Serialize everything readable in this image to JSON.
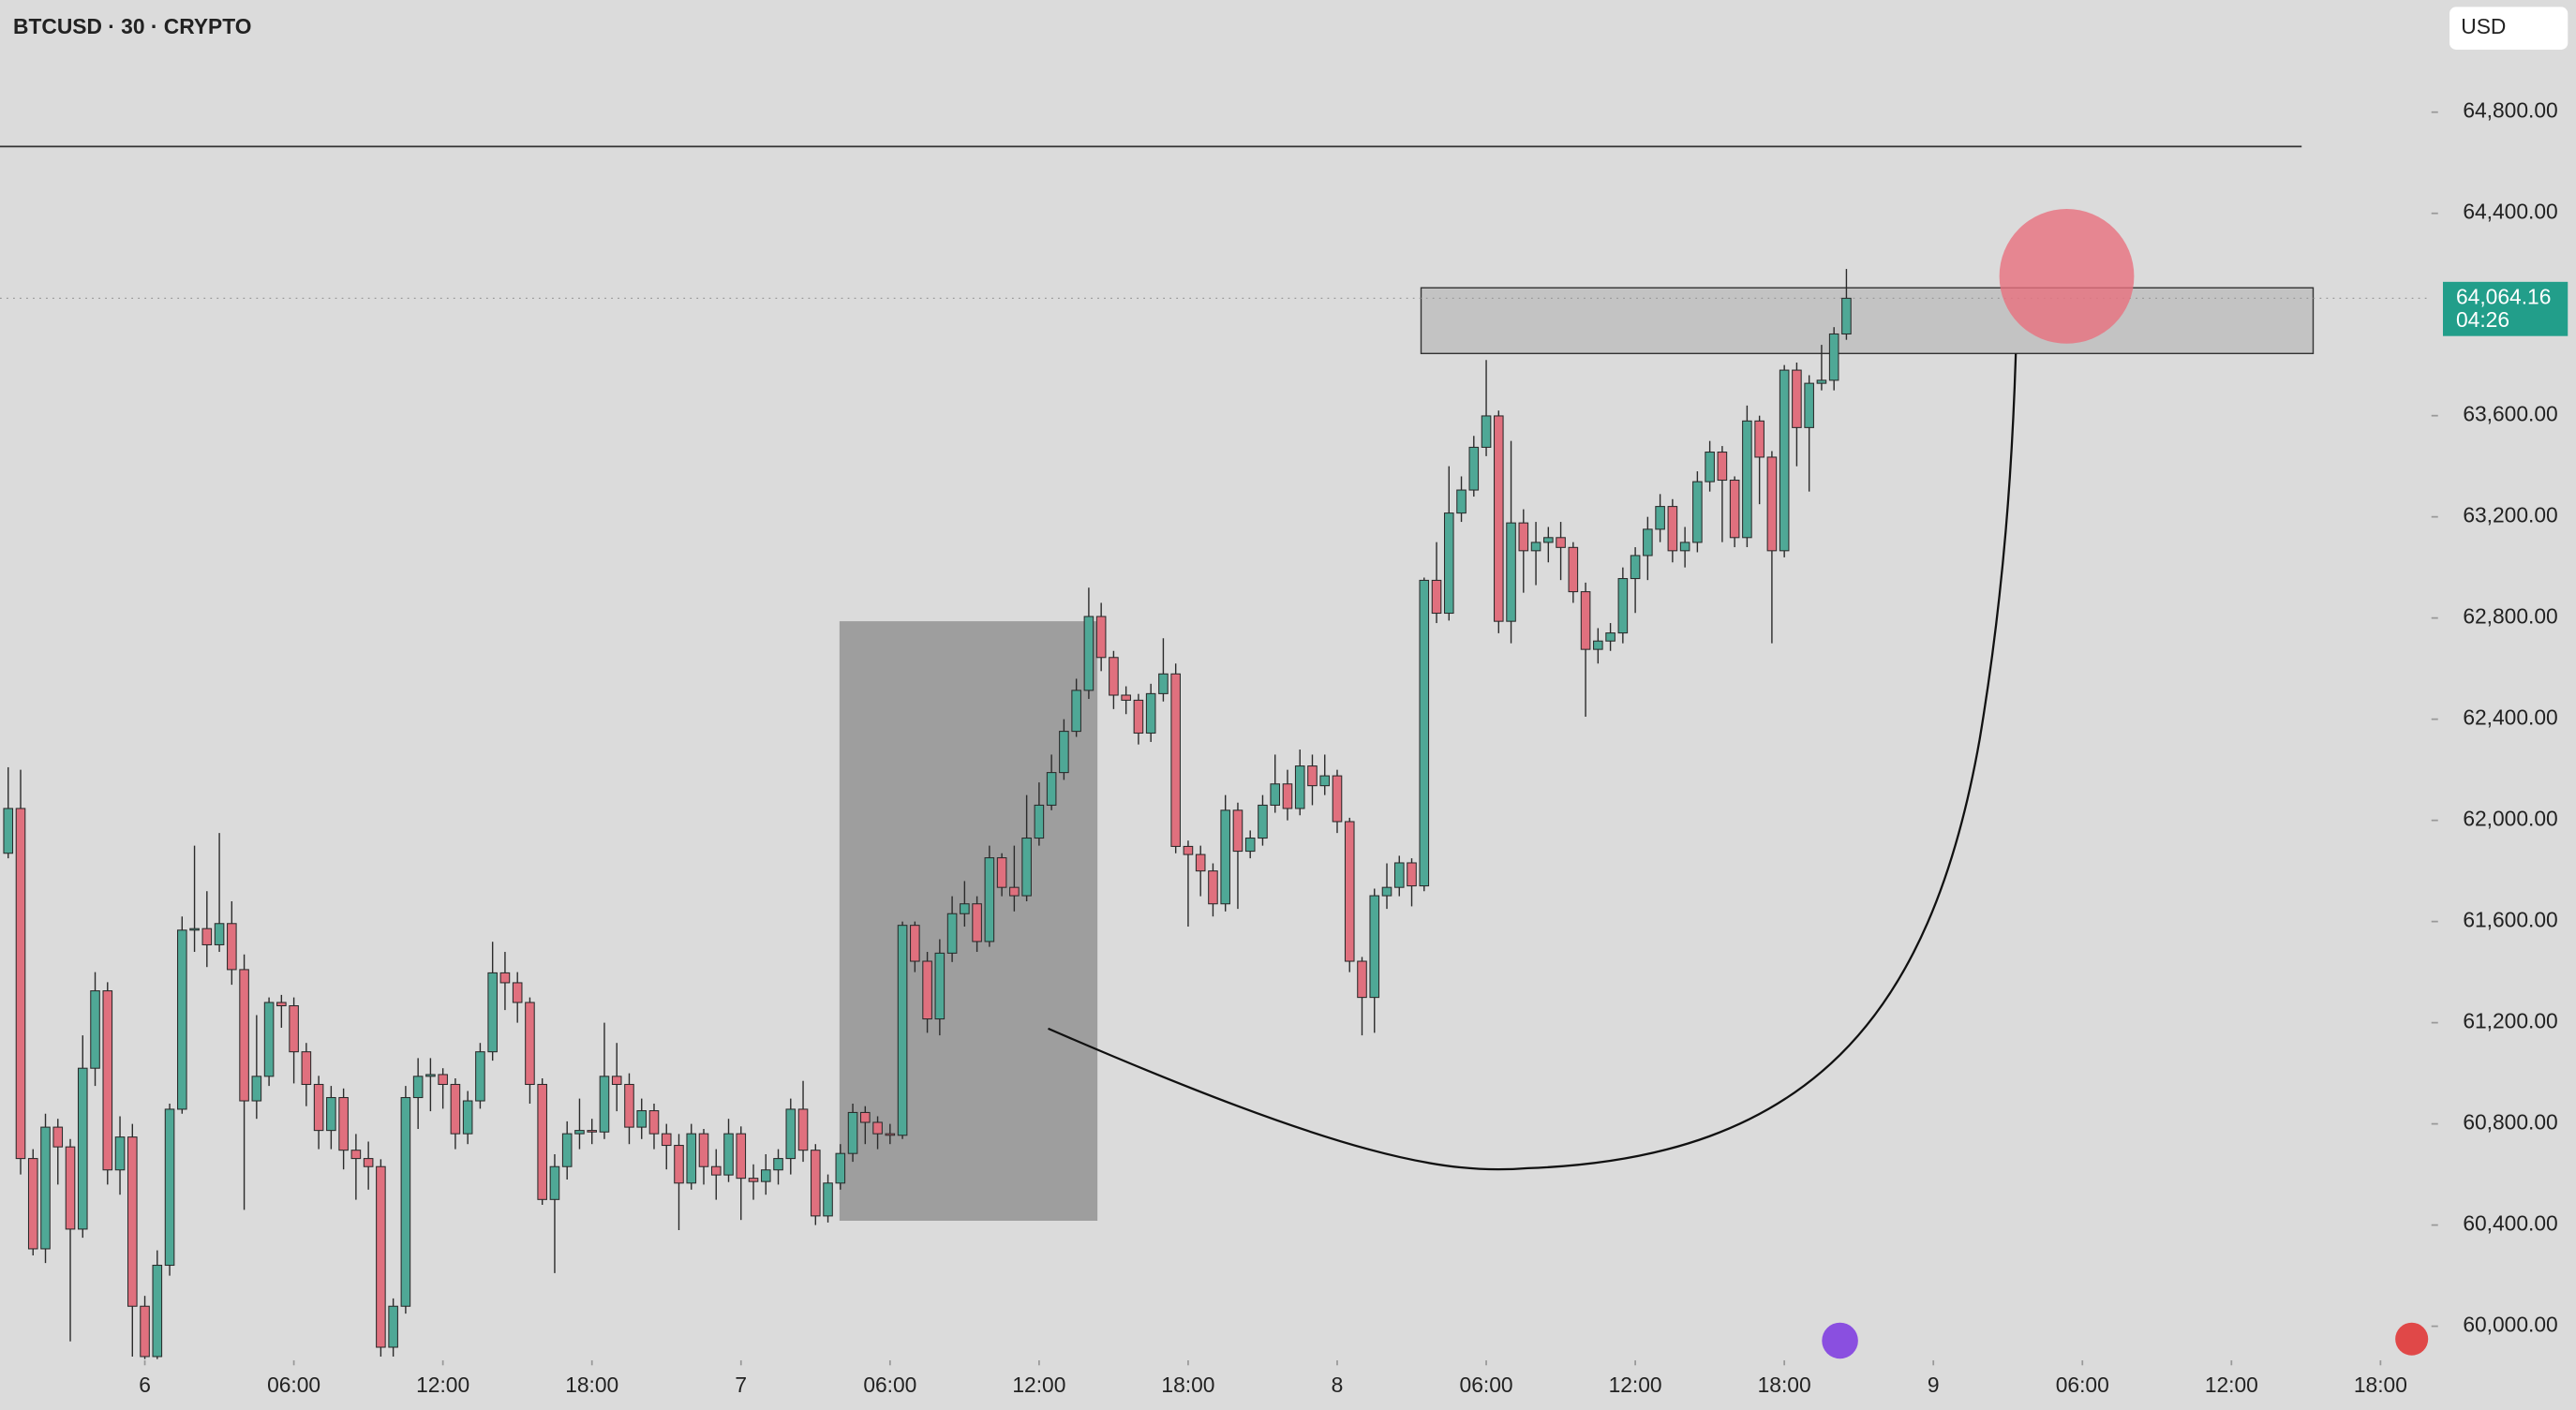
{
  "chart_data": {
    "type": "candlestick",
    "title": "BTCUSD · 30 · CRYPTO",
    "currency": "USD",
    "up_color": "#4fa896",
    "down_color": "#e0707e",
    "xlim": [
      -0.66,
      195.1
    ],
    "ylim": [
      59865,
      65242
    ],
    "xticks": [
      {
        "value": 11,
        "label": "6"
      },
      {
        "value": 23,
        "label": "06:00"
      },
      {
        "value": 35,
        "label": "12:00"
      },
      {
        "value": 47,
        "label": "18:00"
      },
      {
        "value": 59,
        "label": "7"
      },
      {
        "value": 71,
        "label": "06:00"
      },
      {
        "value": 83,
        "label": "12:00"
      },
      {
        "value": 95,
        "label": "18:00"
      },
      {
        "value": 107,
        "label": "8"
      },
      {
        "value": 119,
        "label": "06:00"
      },
      {
        "value": 131,
        "label": "12:00"
      },
      {
        "value": 143,
        "label": "18:00"
      },
      {
        "value": 155,
        "label": "9"
      },
      {
        "value": 167,
        "label": "06:00"
      },
      {
        "value": 179,
        "label": "12:00"
      },
      {
        "value": 191,
        "label": "18:00"
      }
    ],
    "yticks": [
      {
        "value": 60000,
        "label": "60,000.00"
      },
      {
        "value": 60400,
        "label": "60,400.00"
      },
      {
        "value": 60800,
        "label": "60,800.00"
      },
      {
        "value": 61200,
        "label": "61,200.00"
      },
      {
        "value": 61600,
        "label": "61,600.00"
      },
      {
        "value": 62000,
        "label": "62,000.00"
      },
      {
        "value": 62400,
        "label": "62,400.00"
      },
      {
        "value": 62800,
        "label": "62,800.00"
      },
      {
        "value": 63200,
        "label": "63,200.00"
      },
      {
        "value": 63600,
        "label": "63,600.00"
      },
      {
        "value": 64400,
        "label": "64,400.00"
      },
      {
        "value": 64800,
        "label": "64,800.00"
      }
    ],
    "last_price": {
      "value": 64064.16,
      "label": "64,064.16"
    },
    "countdown": "04:26",
    "open": [
      61870,
      62047,
      60663,
      60306,
      60787,
      60709,
      60384,
      61020,
      61326,
      60618,
      60748,
      60079,
      59880,
      60241,
      60858,
      61566,
      61572,
      61508,
      61592,
      61410,
      60891,
      60988,
      61280,
      61267,
      61085,
      60956,
      60774,
      60904,
      60696,
      60663,
      60631,
      59917,
      60079,
      60904,
      60988,
      60995,
      60956,
      60761,
      60891,
      61085,
      61397,
      61358,
      61280,
      60956,
      60501,
      60631,
      60761,
      60774,
      60768,
      60988,
      60956,
      60787,
      60852,
      60761,
      60715,
      60566,
      60761,
      60631,
      60598,
      60761,
      60585,
      60572,
      60618,
      60663,
      60858,
      60696,
      60436,
      60566,
      60683,
      60845,
      60806,
      60761,
      60755,
      61585,
      61443,
      61215,
      61475,
      61631,
      61670,
      61521,
      61852,
      61735,
      61702,
      61930,
      62060,
      62189,
      62352,
      62514,
      62806,
      62644,
      62495,
      62475,
      62345,
      62501,
      62579,
      61897,
      61865,
      61800,
      61670,
      62040,
      61878,
      61930,
      62060,
      62144,
      62047,
      62215,
      62137,
      62176,
      61995,
      61443,
      61300,
      61702,
      61735,
      61832,
      61741,
      62949,
      62819,
      63215,
      63306,
      63475,
      63599,
      62787,
      63176,
      63066,
      63099,
      63118,
      63079,
      62904,
      62676,
      62709,
      62741,
      62956,
      63047,
      63151,
      63241,
      63066,
      63099,
      63339,
      63456,
      63345,
      63118,
      63579,
      63436,
      63066,
      63780,
      63553,
      63728,
      63740,
      63923
    ],
    "high": [
      62210,
      62200,
      60700,
      60840,
      60820,
      60740,
      61150,
      61400,
      61360,
      60830,
      60800,
      60120,
      60300,
      60880,
      61620,
      61900,
      61720,
      61950,
      61680,
      61470,
      61230,
      61300,
      61310,
      61300,
      61120,
      60990,
      60950,
      60940,
      60760,
      60730,
      60660,
      60110,
      60950,
      61060,
      61060,
      61020,
      60980,
      60930,
      61120,
      61520,
      61480,
      61400,
      61300,
      60980,
      60680,
      60810,
      60900,
      60820,
      61200,
      61120,
      61000,
      60900,
      60880,
      60800,
      60760,
      60800,
      60780,
      60700,
      60820,
      60790,
      60640,
      60680,
      60700,
      60900,
      60970,
      60720,
      60600,
      60720,
      60880,
      60870,
      60830,
      60800,
      61600,
      61600,
      61480,
      61530,
      61700,
      61760,
      61700,
      61900,
      61870,
      61900,
      62100,
      62150,
      62260,
      62400,
      62560,
      62920,
      62860,
      62670,
      62530,
      62500,
      62540,
      62720,
      62620,
      61920,
      61900,
      61830,
      62100,
      62070,
      61960,
      62100,
      62260,
      62200,
      62280,
      62260,
      62260,
      62200,
      62010,
      61460,
      61730,
      61830,
      61860,
      61850,
      62960,
      63100,
      63400,
      63360,
      63520,
      63820,
      63620,
      63500,
      63230,
      63180,
      63160,
      63180,
      63100,
      62940,
      62760,
      62780,
      63000,
      63080,
      63200,
      63290,
      63270,
      63160,
      63380,
      63500,
      63480,
      63360,
      63640,
      63600,
      63460,
      63800,
      63810,
      63760,
      63880,
      63950,
      64180
    ],
    "low": [
      61850,
      60600,
      60280,
      60250,
      60560,
      59940,
      60350,
      60950,
      60560,
      60520,
      59880,
      59870,
      59870,
      60200,
      60840,
      61480,
      61420,
      61480,
      61350,
      60460,
      60820,
      60950,
      61180,
      60960,
      60870,
      60700,
      60700,
      60620,
      60500,
      60540,
      59880,
      59880,
      60050,
      60780,
      60850,
      60860,
      60700,
      60720,
      60860,
      61050,
      61250,
      61200,
      60880,
      60480,
      60210,
      60580,
      60700,
      60720,
      60740,
      60850,
      60720,
      60740,
      60700,
      60620,
      60380,
      60540,
      60560,
      60500,
      60570,
      60420,
      60500,
      60520,
      60560,
      60600,
      60650,
      60400,
      60410,
      60540,
      60650,
      60720,
      60700,
      60720,
      60740,
      61400,
      61160,
      61150,
      61440,
      61580,
      61480,
      61500,
      61700,
      61640,
      61680,
      61900,
      62040,
      62160,
      62330,
      62480,
      62590,
      62440,
      62420,
      62300,
      62310,
      62470,
      61870,
      61580,
      61700,
      61620,
      61640,
      61650,
      61850,
      61900,
      62030,
      62000,
      62020,
      62060,
      62100,
      61950,
      61400,
      61150,
      61160,
      61650,
      61700,
      61660,
      61720,
      62780,
      62790,
      63180,
      63280,
      63440,
      62740,
      62700,
      62900,
      62930,
      63020,
      62950,
      62860,
      62410,
      62620,
      62670,
      62700,
      62820,
      62950,
      63100,
      63020,
      63000,
      63060,
      63300,
      63100,
      63080,
      63080,
      63250,
      62700,
      63040,
      63400,
      63300,
      63700,
      63700,
      63900
    ],
    "close": [
      62047,
      60663,
      60306,
      60787,
      60709,
      60384,
      61020,
      61326,
      60618,
      60748,
      60079,
      59880,
      60241,
      60858,
      61566,
      61572,
      61508,
      61592,
      61410,
      60891,
      60988,
      61280,
      61267,
      61085,
      60956,
      60774,
      60904,
      60696,
      60663,
      60631,
      59917,
      60079,
      60904,
      60988,
      60995,
      60956,
      60761,
      60891,
      61085,
      61397,
      61358,
      61280,
      60956,
      60501,
      60631,
      60761,
      60774,
      60768,
      60988,
      60956,
      60787,
      60852,
      60761,
      60715,
      60566,
      60761,
      60631,
      60598,
      60761,
      60585,
      60572,
      60618,
      60663,
      60858,
      60696,
      60436,
      60566,
      60683,
      60845,
      60806,
      60761,
      60755,
      61585,
      61443,
      61215,
      61475,
      61631,
      61670,
      61521,
      61852,
      61735,
      61702,
      61930,
      62060,
      62189,
      62352,
      62514,
      62806,
      62644,
      62495,
      62475,
      62345,
      62501,
      62579,
      61897,
      61865,
      61800,
      61670,
      62040,
      61878,
      61930,
      62060,
      62144,
      62047,
      62215,
      62137,
      62176,
      61995,
      61443,
      61300,
      61702,
      61735,
      61832,
      61741,
      62949,
      62819,
      63215,
      63306,
      63475,
      63599,
      62787,
      63176,
      63066,
      63099,
      63118,
      63079,
      62904,
      62676,
      62709,
      62741,
      62956,
      63047,
      63151,
      63241,
      63066,
      63099,
      63339,
      63456,
      63345,
      63118,
      63579,
      63436,
      63066,
      63780,
      63553,
      63728,
      63740,
      63923,
      64064.16
    ]
  }
}
